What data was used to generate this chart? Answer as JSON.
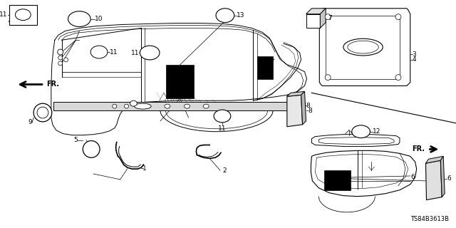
{
  "bg_color": "#ffffff",
  "line_color": "#000000",
  "diagram_code": "TS84B3613B",
  "fs": 6.5,
  "lw": 0.7
}
